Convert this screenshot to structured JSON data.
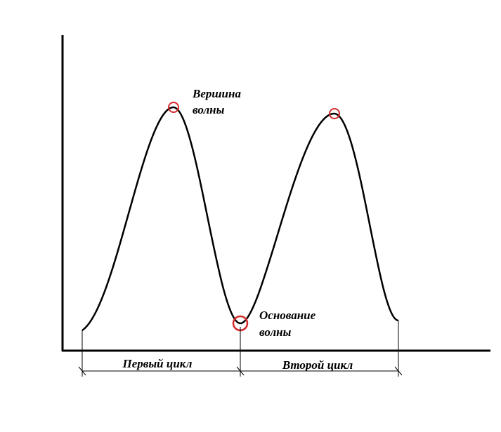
{
  "annotations": [
    {
      "lines": [
        "Вершина",
        "волны"
      ]
    },
    {
      "lines": [
        "Основание",
        "волны"
      ]
    }
  ],
  "cycles": [
    "Первый цикл",
    "Второй цикл"
  ]
}
